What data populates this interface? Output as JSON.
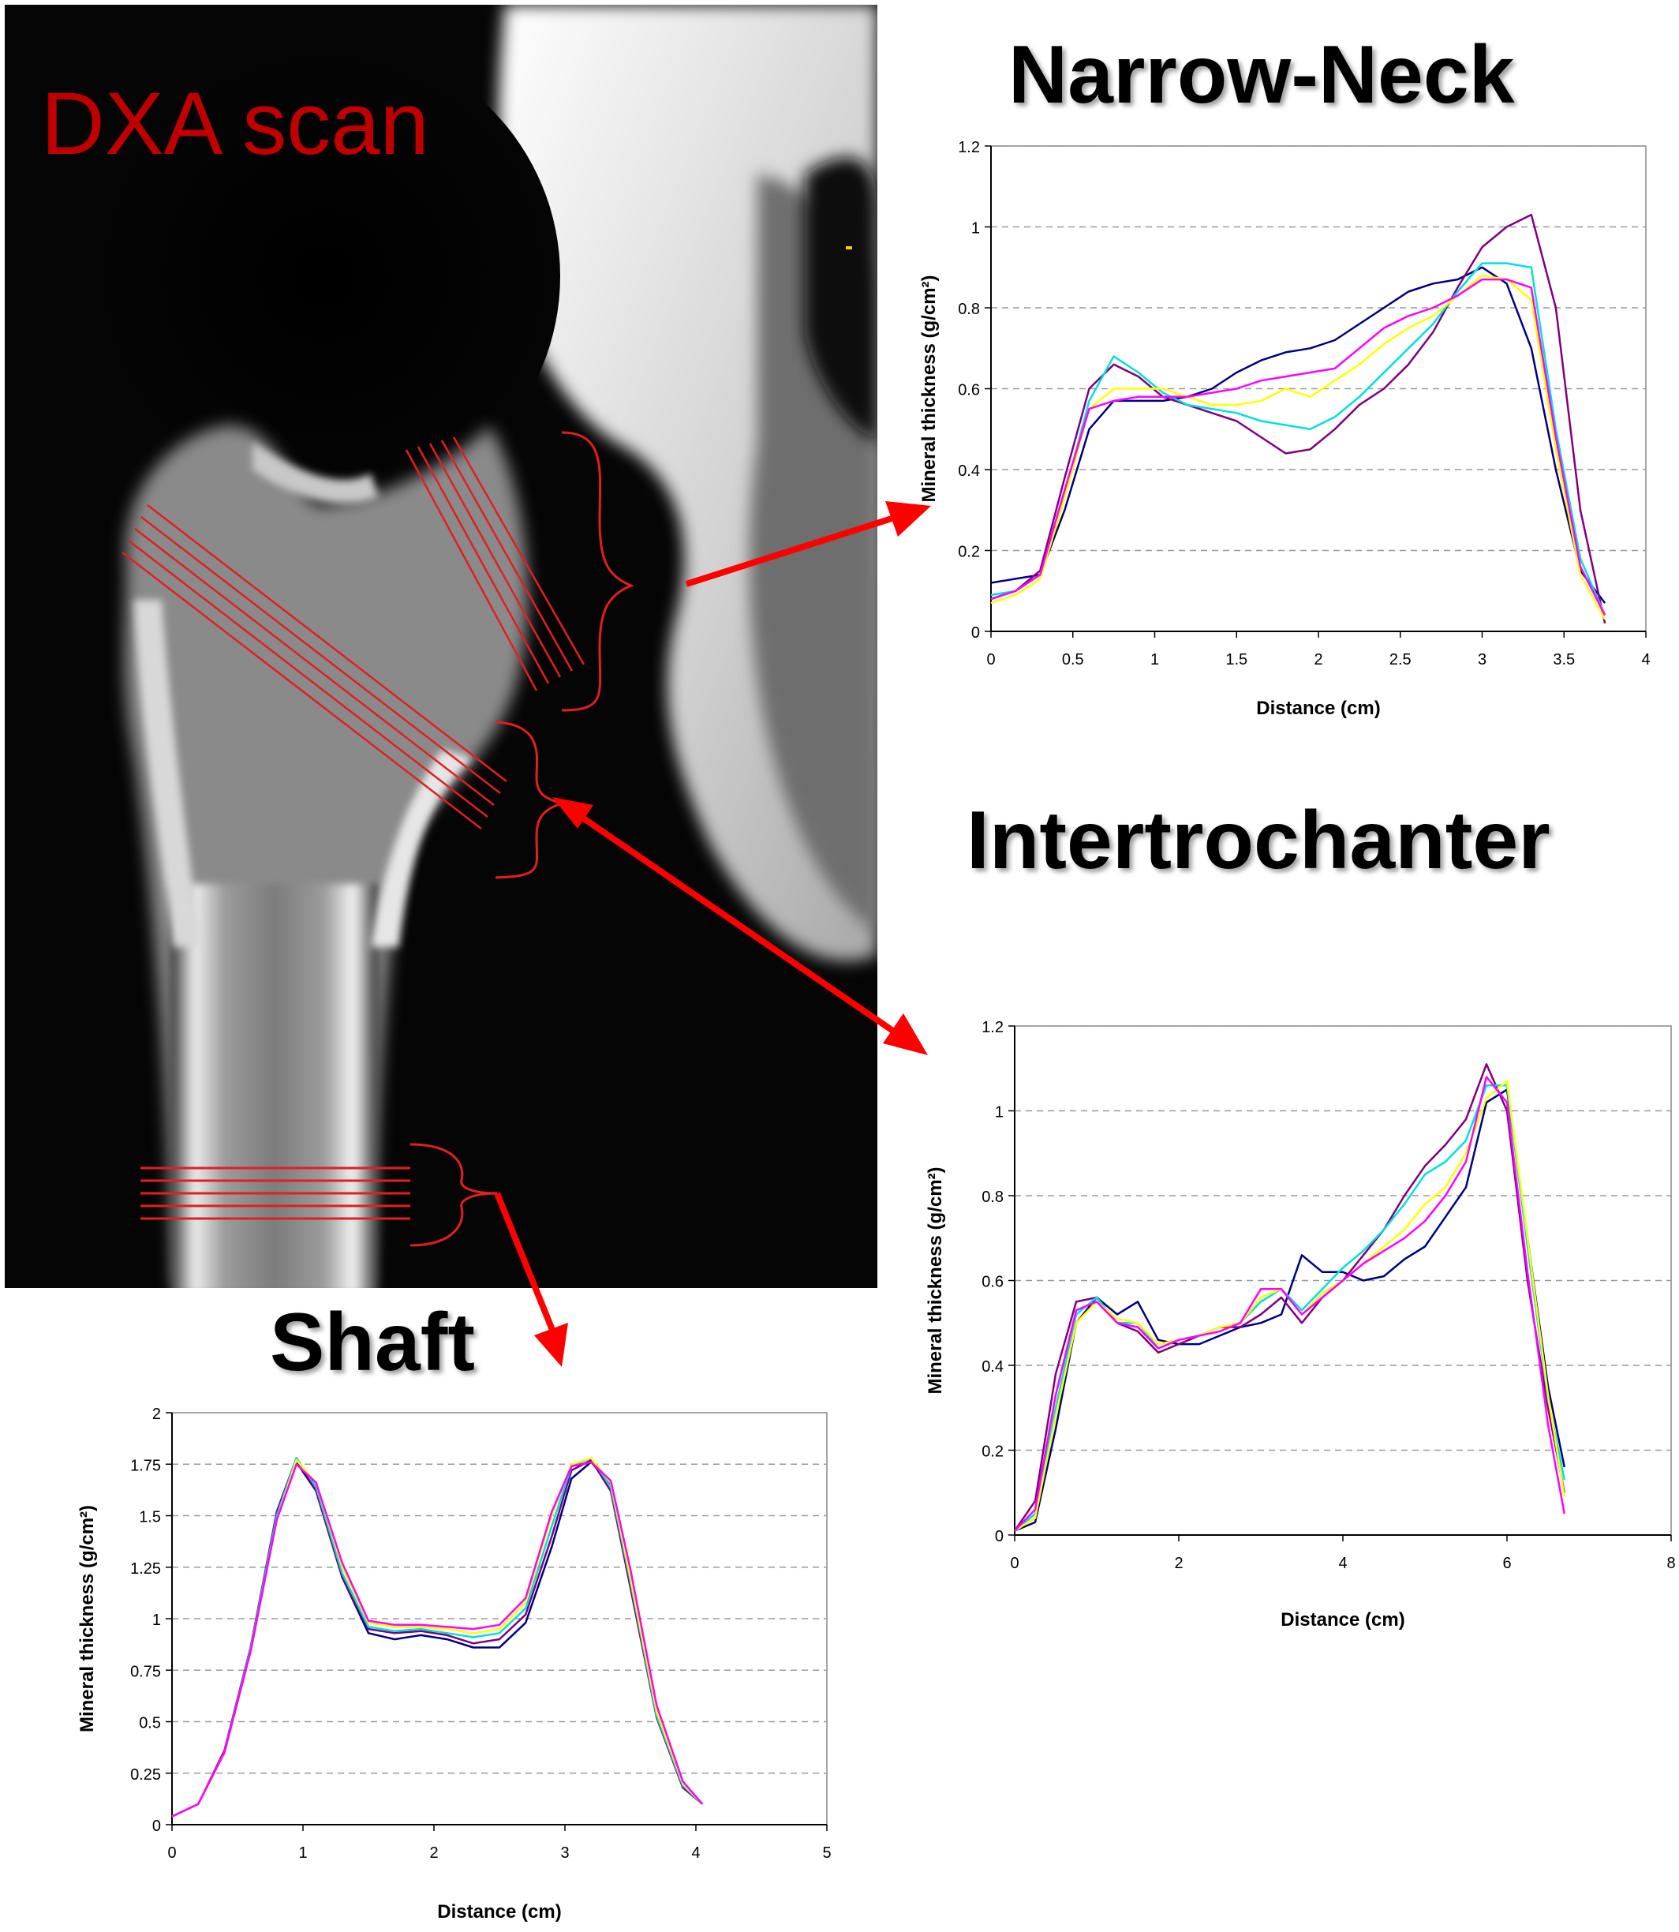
{
  "scan_label": "DXA scan",
  "colors": {
    "series": [
      "#000080",
      "#800080",
      "#00e0e0",
      "#ffff00",
      "#ff00ff"
    ],
    "annotation": "#ff0000"
  },
  "chart_data": [
    {
      "type": "line",
      "title": "Narrow-Neck",
      "xlabel": "Distance (cm)",
      "ylabel": "Mineral thickness (g/cm²)",
      "xlim": [
        0,
        4
      ],
      "ylim": [
        0,
        1.2
      ],
      "xticks": [
        "0",
        "0.5",
        "1",
        "1.5",
        "2",
        "2.5",
        "3",
        "3.5",
        "4"
      ],
      "yticks": [
        "0",
        "0.2",
        "0.4",
        "0.6",
        "0.8",
        "1",
        "1.2"
      ],
      "grid": true,
      "series": [
        {
          "color": "#000080",
          "x": [
            0,
            0.15,
            0.3,
            0.45,
            0.6,
            0.75,
            0.9,
            1.05,
            1.2,
            1.35,
            1.5,
            1.65,
            1.8,
            1.95,
            2.1,
            2.25,
            2.4,
            2.55,
            2.7,
            2.85,
            3.0,
            3.15,
            3.3,
            3.45,
            3.6,
            3.75
          ],
          "y": [
            0.12,
            0.13,
            0.14,
            0.3,
            0.5,
            0.57,
            0.57,
            0.57,
            0.58,
            0.6,
            0.64,
            0.67,
            0.69,
            0.7,
            0.72,
            0.76,
            0.8,
            0.84,
            0.86,
            0.87,
            0.9,
            0.86,
            0.7,
            0.4,
            0.15,
            0.07
          ]
        },
        {
          "color": "#800080",
          "x": [
            0,
            0.15,
            0.3,
            0.45,
            0.6,
            0.75,
            0.9,
            1.05,
            1.2,
            1.35,
            1.5,
            1.65,
            1.8,
            1.95,
            2.1,
            2.25,
            2.4,
            2.55,
            2.7,
            2.85,
            3.0,
            3.15,
            3.3,
            3.45,
            3.6,
            3.75
          ],
          "y": [
            0.08,
            0.1,
            0.15,
            0.38,
            0.6,
            0.66,
            0.63,
            0.58,
            0.56,
            0.54,
            0.52,
            0.48,
            0.44,
            0.45,
            0.5,
            0.56,
            0.6,
            0.66,
            0.74,
            0.85,
            0.95,
            1.0,
            1.03,
            0.8,
            0.3,
            0.02
          ]
        },
        {
          "color": "#00e0e0",
          "x": [
            0,
            0.15,
            0.3,
            0.45,
            0.6,
            0.75,
            0.9,
            1.05,
            1.2,
            1.35,
            1.5,
            1.65,
            1.8,
            1.95,
            2.1,
            2.25,
            2.4,
            2.55,
            2.7,
            2.85,
            3.0,
            3.15,
            3.3,
            3.45,
            3.6,
            3.75
          ],
          "y": [
            0.09,
            0.1,
            0.14,
            0.34,
            0.57,
            0.68,
            0.64,
            0.59,
            0.56,
            0.55,
            0.54,
            0.52,
            0.51,
            0.5,
            0.53,
            0.58,
            0.64,
            0.7,
            0.76,
            0.84,
            0.91,
            0.91,
            0.9,
            0.5,
            0.18,
            0.04
          ]
        },
        {
          "color": "#ffff00",
          "x": [
            0,
            0.15,
            0.3,
            0.45,
            0.6,
            0.75,
            0.9,
            1.05,
            1.2,
            1.35,
            1.5,
            1.65,
            1.8,
            1.95,
            2.1,
            2.25,
            2.4,
            2.55,
            2.7,
            2.85,
            3.0,
            3.15,
            3.3,
            3.45,
            3.6,
            3.75
          ],
          "y": [
            0.07,
            0.09,
            0.13,
            0.33,
            0.55,
            0.6,
            0.6,
            0.6,
            0.58,
            0.56,
            0.56,
            0.57,
            0.6,
            0.58,
            0.62,
            0.66,
            0.71,
            0.75,
            0.78,
            0.83,
            0.88,
            0.87,
            0.82,
            0.45,
            0.14,
            0.03
          ]
        },
        {
          "color": "#ff00ff",
          "x": [
            0,
            0.15,
            0.3,
            0.45,
            0.6,
            0.75,
            0.9,
            1.05,
            1.2,
            1.35,
            1.5,
            1.65,
            1.8,
            1.95,
            2.1,
            2.25,
            2.4,
            2.55,
            2.7,
            2.85,
            3.0,
            3.15,
            3.3,
            3.45,
            3.6,
            3.75
          ],
          "y": [
            0.08,
            0.1,
            0.14,
            0.35,
            0.55,
            0.57,
            0.58,
            0.58,
            0.58,
            0.59,
            0.6,
            0.62,
            0.63,
            0.64,
            0.65,
            0.7,
            0.75,
            0.78,
            0.8,
            0.83,
            0.87,
            0.87,
            0.85,
            0.48,
            0.16,
            0.04
          ]
        }
      ]
    },
    {
      "type": "line",
      "title": "Intertrochanter",
      "xlabel": "Distance (cm)",
      "ylabel": "Mineral thickness (g/cm²)",
      "xlim": [
        0,
        8
      ],
      "ylim": [
        0,
        1.2
      ],
      "xticks": [
        "0",
        "2",
        "4",
        "6",
        "8"
      ],
      "yticks": [
        "0",
        "0.2",
        "0.4",
        "0.6",
        "0.8",
        "1",
        "1.2"
      ],
      "grid": true,
      "series": [
        {
          "color": "#000080",
          "x": [
            0,
            0.25,
            0.5,
            0.75,
            1.0,
            1.25,
            1.5,
            1.75,
            2.0,
            2.25,
            2.5,
            2.75,
            3.0,
            3.25,
            3.5,
            3.75,
            4.0,
            4.25,
            4.5,
            4.75,
            5.0,
            5.25,
            5.5,
            5.75,
            6.0,
            6.25,
            6.5,
            6.7
          ],
          "y": [
            0.01,
            0.03,
            0.25,
            0.5,
            0.56,
            0.52,
            0.55,
            0.46,
            0.45,
            0.45,
            0.47,
            0.49,
            0.5,
            0.52,
            0.66,
            0.62,
            0.62,
            0.6,
            0.61,
            0.65,
            0.68,
            0.75,
            0.82,
            1.02,
            1.05,
            0.7,
            0.35,
            0.16
          ]
        },
        {
          "color": "#800080",
          "x": [
            0,
            0.25,
            0.5,
            0.75,
            1.0,
            1.25,
            1.5,
            1.75,
            2.0,
            2.25,
            2.5,
            2.75,
            3.0,
            3.25,
            3.5,
            3.75,
            4.0,
            4.25,
            4.5,
            4.75,
            5.0,
            5.25,
            5.5,
            5.75,
            6.0,
            6.25,
            6.5,
            6.7
          ],
          "y": [
            0.01,
            0.08,
            0.38,
            0.55,
            0.56,
            0.5,
            0.48,
            0.43,
            0.45,
            0.47,
            0.49,
            0.49,
            0.52,
            0.56,
            0.5,
            0.56,
            0.6,
            0.66,
            0.72,
            0.8,
            0.87,
            0.92,
            0.98,
            1.11,
            1.0,
            0.6,
            0.3,
            0.1
          ]
        },
        {
          "color": "#00e0e0",
          "x": [
            0,
            0.25,
            0.5,
            0.75,
            1.0,
            1.25,
            1.5,
            1.75,
            2.0,
            2.25,
            2.5,
            2.75,
            3.0,
            3.25,
            3.5,
            3.75,
            4.0,
            4.25,
            4.5,
            4.75,
            5.0,
            5.25,
            5.5,
            5.75,
            6.0,
            6.25,
            6.5,
            6.7
          ],
          "y": [
            0.01,
            0.05,
            0.3,
            0.52,
            0.56,
            0.5,
            0.5,
            0.44,
            0.46,
            0.47,
            0.49,
            0.5,
            0.55,
            0.58,
            0.53,
            0.58,
            0.63,
            0.67,
            0.72,
            0.78,
            0.85,
            0.88,
            0.93,
            1.06,
            1.06,
            0.68,
            0.32,
            0.13
          ]
        },
        {
          "color": "#ffff00",
          "x": [
            0,
            0.25,
            0.5,
            0.75,
            1.0,
            1.25,
            1.5,
            1.75,
            2.0,
            2.25,
            2.5,
            2.75,
            3.0,
            3.25,
            3.5,
            3.75,
            4.0,
            4.25,
            4.5,
            4.75,
            5.0,
            5.25,
            5.5,
            5.75,
            6.0,
            6.25,
            6.5,
            6.7
          ],
          "y": [
            0.01,
            0.04,
            0.28,
            0.5,
            0.55,
            0.51,
            0.5,
            0.45,
            0.46,
            0.47,
            0.49,
            0.5,
            0.56,
            0.58,
            0.52,
            0.57,
            0.6,
            0.64,
            0.68,
            0.72,
            0.78,
            0.82,
            0.9,
            1.03,
            1.07,
            0.7,
            0.33,
            0.09
          ]
        },
        {
          "color": "#ff00ff",
          "x": [
            0,
            0.25,
            0.5,
            0.75,
            1.0,
            1.25,
            1.5,
            1.75,
            2.0,
            2.25,
            2.5,
            2.75,
            3.0,
            3.25,
            3.5,
            3.75,
            4.0,
            4.25,
            4.5,
            4.75,
            5.0,
            5.25,
            5.5,
            5.75,
            6.0,
            6.25,
            6.5,
            6.7
          ],
          "y": [
            0.01,
            0.06,
            0.33,
            0.53,
            0.55,
            0.5,
            0.49,
            0.44,
            0.46,
            0.47,
            0.48,
            0.5,
            0.58,
            0.58,
            0.52,
            0.56,
            0.6,
            0.64,
            0.67,
            0.7,
            0.74,
            0.8,
            0.88,
            1.08,
            1.02,
            0.62,
            0.26,
            0.05
          ]
        }
      ]
    },
    {
      "type": "line",
      "title": "Shaft",
      "xlabel": "Distance (cm)",
      "ylabel": "Mineral thickness (g/cm²)",
      "xlim": [
        0,
        5
      ],
      "ylim": [
        0,
        2
      ],
      "xticks": [
        "0",
        "1",
        "2",
        "3",
        "4",
        "5"
      ],
      "yticks": [
        "0",
        "0.25",
        "0.5",
        "0.75",
        "1",
        "1.25",
        "1.5",
        "1.75",
        "2"
      ],
      "grid": true,
      "series": [
        {
          "color": "#000080",
          "x": [
            0,
            0.2,
            0.4,
            0.6,
            0.8,
            0.95,
            1.1,
            1.3,
            1.5,
            1.7,
            1.9,
            2.1,
            2.3,
            2.5,
            2.7,
            2.9,
            3.05,
            3.2,
            3.35,
            3.5,
            3.7,
            3.9,
            4.05
          ],
          "y": [
            0.04,
            0.1,
            0.35,
            0.85,
            1.5,
            1.76,
            1.62,
            1.2,
            0.93,
            0.9,
            0.92,
            0.9,
            0.86,
            0.86,
            0.98,
            1.35,
            1.68,
            1.76,
            1.65,
            1.2,
            0.55,
            0.2,
            0.1
          ]
        },
        {
          "color": "#800080",
          "x": [
            0,
            0.2,
            0.4,
            0.6,
            0.8,
            0.95,
            1.1,
            1.3,
            1.5,
            1.7,
            1.9,
            2.1,
            2.3,
            2.5,
            2.7,
            2.9,
            3.05,
            3.2,
            3.35,
            3.5,
            3.7,
            3.9,
            4.05
          ],
          "y": [
            0.04,
            0.1,
            0.36,
            0.86,
            1.52,
            1.78,
            1.62,
            1.2,
            0.95,
            0.93,
            0.94,
            0.92,
            0.88,
            0.9,
            1.02,
            1.4,
            1.72,
            1.77,
            1.62,
            1.15,
            0.52,
            0.18,
            0.1
          ]
        },
        {
          "color": "#00e0e0",
          "x": [
            0,
            0.2,
            0.4,
            0.6,
            0.8,
            0.95,
            1.1,
            1.3,
            1.5,
            1.7,
            1.9,
            2.1,
            2.3,
            2.5,
            2.7,
            2.9,
            3.05,
            3.2,
            3.35,
            3.5,
            3.7,
            3.9,
            4.05
          ],
          "y": [
            0.04,
            0.1,
            0.35,
            0.85,
            1.5,
            1.78,
            1.64,
            1.22,
            0.96,
            0.94,
            0.95,
            0.93,
            0.91,
            0.93,
            1.05,
            1.45,
            1.74,
            1.78,
            1.64,
            1.18,
            0.53,
            0.19,
            0.1
          ]
        },
        {
          "color": "#ffff00",
          "x": [
            0,
            0.2,
            0.4,
            0.6,
            0.8,
            0.95,
            1.1,
            1.3,
            1.5,
            1.7,
            1.9,
            2.1,
            2.3,
            2.5,
            2.7,
            2.9,
            3.05,
            3.2,
            3.35,
            3.5,
            3.7,
            3.9,
            4.05
          ],
          "y": [
            0.04,
            0.1,
            0.35,
            0.84,
            1.48,
            1.77,
            1.66,
            1.25,
            0.98,
            0.96,
            0.96,
            0.95,
            0.93,
            0.95,
            1.08,
            1.5,
            1.75,
            1.78,
            1.66,
            1.2,
            0.55,
            0.2,
            0.1
          ]
        },
        {
          "color": "#ff00ff",
          "x": [
            0,
            0.2,
            0.4,
            0.6,
            0.8,
            0.95,
            1.1,
            1.3,
            1.5,
            1.7,
            1.9,
            2.1,
            2.3,
            2.5,
            2.7,
            2.9,
            3.05,
            3.2,
            3.35,
            3.5,
            3.7,
            3.9,
            4.05
          ],
          "y": [
            0.04,
            0.1,
            0.35,
            0.84,
            1.48,
            1.75,
            1.66,
            1.27,
            0.99,
            0.97,
            0.97,
            0.96,
            0.95,
            0.97,
            1.1,
            1.52,
            1.74,
            1.76,
            1.67,
            1.24,
            0.58,
            0.21,
            0.1
          ]
        }
      ]
    }
  ]
}
